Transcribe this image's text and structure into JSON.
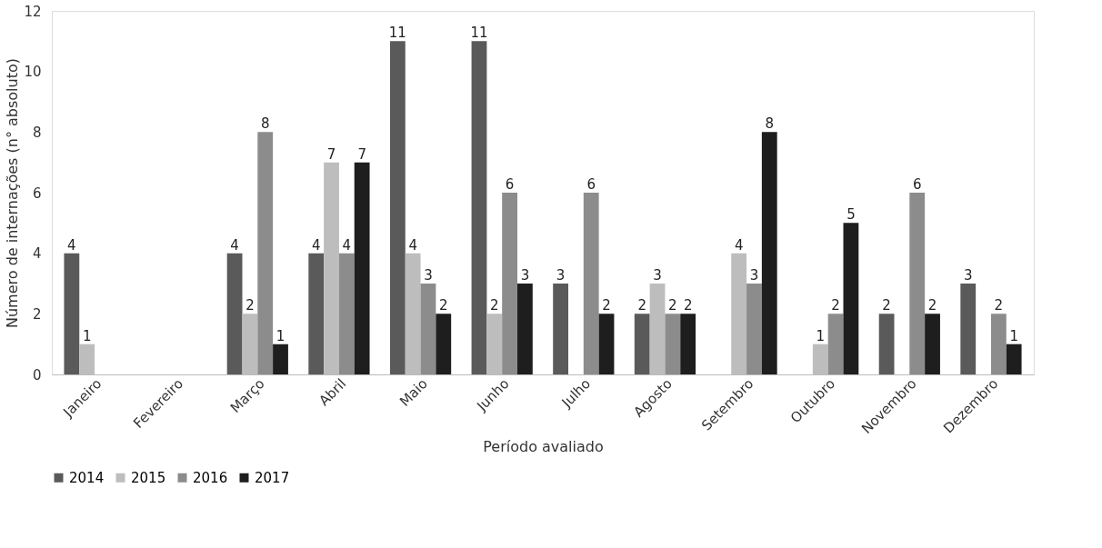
{
  "chart_data": {
    "type": "bar",
    "xlabel": "Período avaliado",
    "ylabel": "Número de internações (n° absoluto)",
    "categories": [
      "Janeiro",
      "Fevereiro",
      "Março",
      "Abril",
      "Maio",
      "Junho",
      "Julho",
      "Agosto",
      "Setembro",
      "Outubro",
      "Novembro",
      "Dezembro"
    ],
    "series": [
      {
        "name": "2014",
        "color": "#5a5a5a",
        "values": [
          4,
          null,
          4,
          4,
          11,
          11,
          3,
          2,
          null,
          null,
          2,
          3
        ]
      },
      {
        "name": "2015",
        "color": "#bdbdbd",
        "values": [
          1,
          null,
          2,
          7,
          4,
          2,
          null,
          3,
          4,
          1,
          null,
          null
        ]
      },
      {
        "name": "2016",
        "color": "#8c8c8c",
        "values": [
          null,
          null,
          8,
          4,
          3,
          6,
          6,
          2,
          3,
          2,
          6,
          2
        ]
      },
      {
        "name": "2017",
        "color": "#1e1e1e",
        "values": [
          null,
          null,
          1,
          7,
          2,
          3,
          2,
          2,
          8,
          5,
          2,
          1
        ]
      }
    ],
    "ylim": [
      0,
      12
    ],
    "yticks": [
      0,
      2,
      4,
      6,
      8,
      10,
      12
    ],
    "grid": false,
    "legend": "bottom",
    "data_labels": true
  }
}
